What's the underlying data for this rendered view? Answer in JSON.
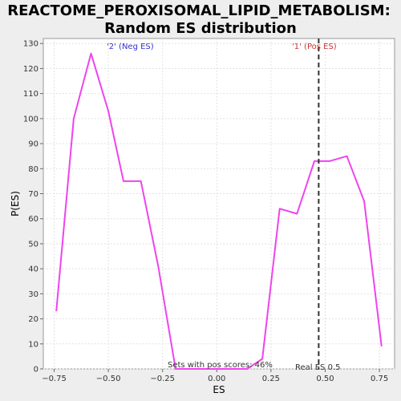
{
  "chart_data": {
    "type": "line",
    "title_lines": [
      "REACTOME_PEROXISOMAL_LIPID_METABOLISM:",
      "Random ES distribution"
    ],
    "xlabel": "ES",
    "ylabel": "P(ES)",
    "xlim": [
      -0.8,
      0.82
    ],
    "ylim": [
      0,
      132
    ],
    "x_ticks": [
      -0.75,
      -0.5,
      -0.25,
      0.0,
      0.25,
      0.5,
      0.75
    ],
    "x_tick_labels": [
      "−0.75",
      "−0.50",
      "−0.25",
      "0.00",
      "0.25",
      "0.50",
      "0.75"
    ],
    "y_ticks": [
      0,
      10,
      20,
      30,
      40,
      50,
      60,
      70,
      80,
      90,
      100,
      110,
      120,
      130
    ],
    "grid": true,
    "series": [
      {
        "color": "#ee44ee",
        "x": [
          -0.74,
          -0.66,
          -0.58,
          -0.5,
          -0.43,
          -0.35,
          -0.27,
          -0.19,
          -0.11,
          -0.03,
          0.05,
          0.14,
          0.21,
          0.29,
          0.37,
          0.45,
          0.52,
          0.6,
          0.68,
          0.76
        ],
        "y": [
          23,
          100,
          126,
          103,
          75,
          75,
          41,
          0,
          0,
          0,
          0,
          0,
          4,
          64,
          62,
          83,
          83,
          85,
          67,
          9
        ]
      }
    ],
    "real_es": 0.47,
    "real_es_color": "#333333",
    "annotations": {
      "neg_label": "'2' (Neg ES)",
      "neg_color": "#3333cc",
      "pos_label": "'1' (Pos ES)",
      "pos_color": "#cc3333",
      "pos_scores": "Sets with pos scores: 46%",
      "real_es_label": "Real ES 0.5"
    }
  }
}
